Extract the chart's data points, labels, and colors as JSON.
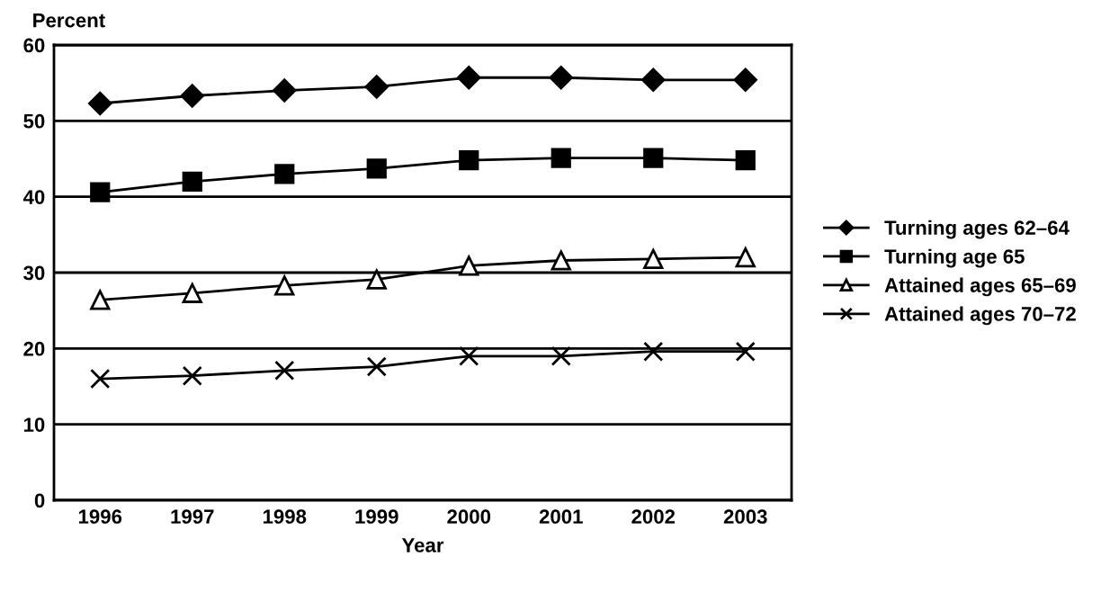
{
  "chart_data": {
    "type": "line",
    "ylabel": "Percent",
    "xlabel": "Year",
    "categories": [
      "1996",
      "1997",
      "1998",
      "1999",
      "2000",
      "2001",
      "2002",
      "2003"
    ],
    "series": [
      {
        "name": "Turning ages 62–64",
        "color": "#000000",
        "marker": "diamond",
        "values": [
          52.3,
          53.3,
          54.0,
          54.5,
          55.7,
          55.7,
          55.4,
          55.4
        ]
      },
      {
        "name": "Turning age 65",
        "color": "#000000",
        "marker": "square",
        "values": [
          40.6,
          42.0,
          43.0,
          43.7,
          44.8,
          45.1,
          45.1,
          44.8
        ]
      },
      {
        "name": "Attained ages 65–69",
        "color": "#000000",
        "marker": "triangle",
        "values": [
          26.4,
          27.3,
          28.3,
          29.1,
          30.9,
          31.6,
          31.8,
          32.0
        ]
      },
      {
        "name": "Attained ages 70–72",
        "color": "#000000",
        "marker": "cross",
        "values": [
          16.0,
          16.4,
          17.1,
          17.6,
          19.0,
          19.0,
          19.6,
          19.6
        ]
      }
    ],
    "ylim": [
      0,
      60
    ],
    "yticks": [
      0,
      10,
      20,
      30,
      40,
      50,
      60
    ],
    "grid": "y",
    "legend": "right",
    "line_style": "solid"
  }
}
